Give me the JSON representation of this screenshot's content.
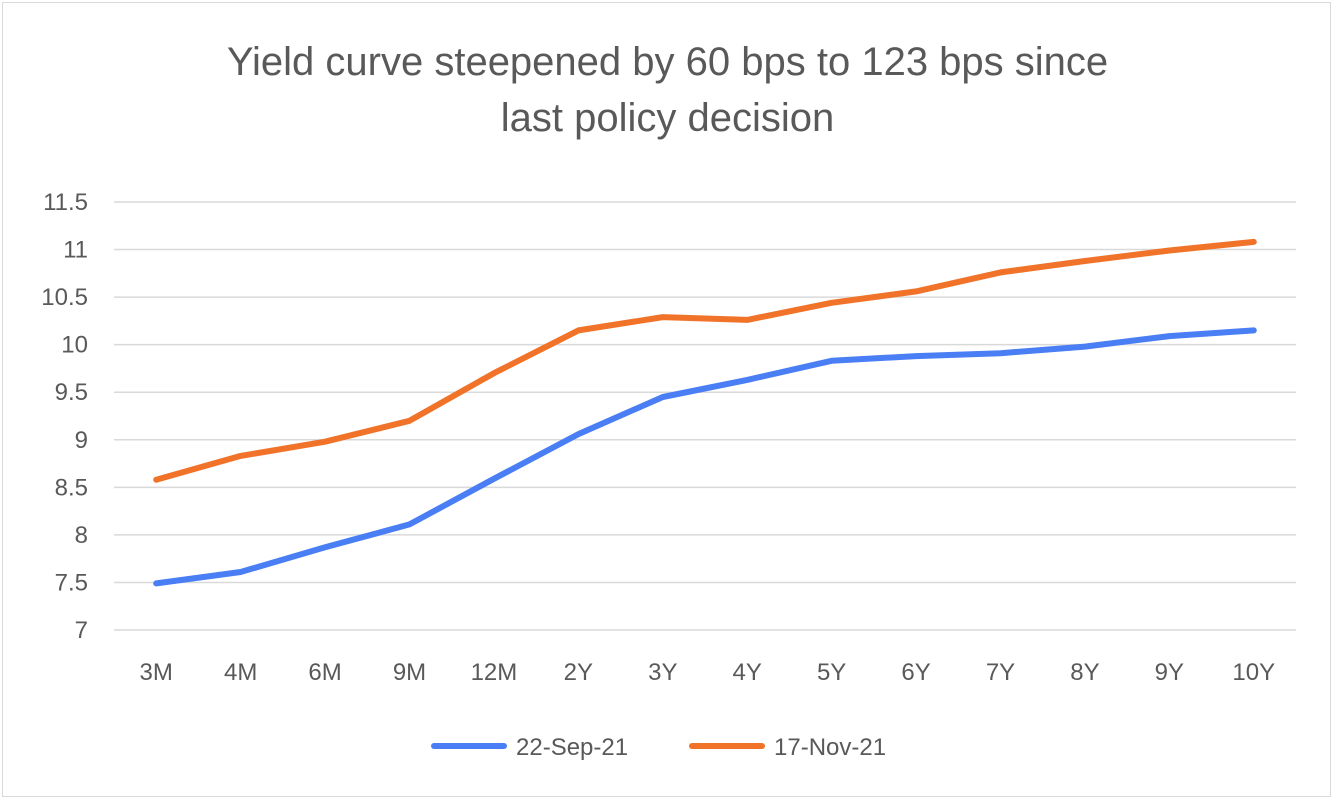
{
  "chart_data": {
    "type": "line",
    "title_lines": [
      "Yield curve steepened by 60 bps to 123 bps since",
      "last policy decision"
    ],
    "xlabel": "",
    "ylabel": "",
    "categories": [
      "3M",
      "4M",
      "6M",
      "9M",
      "12M",
      "2Y",
      "3Y",
      "4Y",
      "5Y",
      "6Y",
      "7Y",
      "8Y",
      "9Y",
      "10Y"
    ],
    "ylim": [
      7,
      11.5
    ],
    "yticks": [
      "11.5",
      "11",
      "10.5",
      "10",
      "9.5",
      "9",
      "8.5",
      "8",
      "7.5",
      "7"
    ],
    "grid": true,
    "legend_position": "bottom",
    "series": [
      {
        "name": "22-Sep-21",
        "color": "#4a7ef5",
        "values": [
          7.49,
          7.61,
          7.87,
          8.11,
          8.59,
          9.06,
          9.45,
          9.63,
          9.83,
          9.88,
          9.91,
          9.98,
          10.09,
          10.15
        ]
      },
      {
        "name": "17-Nov-21",
        "color": "#f07329",
        "values": [
          8.58,
          8.83,
          8.98,
          9.2,
          9.7,
          10.15,
          10.29,
          10.26,
          10.44,
          10.56,
          10.76,
          10.88,
          10.99,
          11.08
        ]
      }
    ]
  }
}
